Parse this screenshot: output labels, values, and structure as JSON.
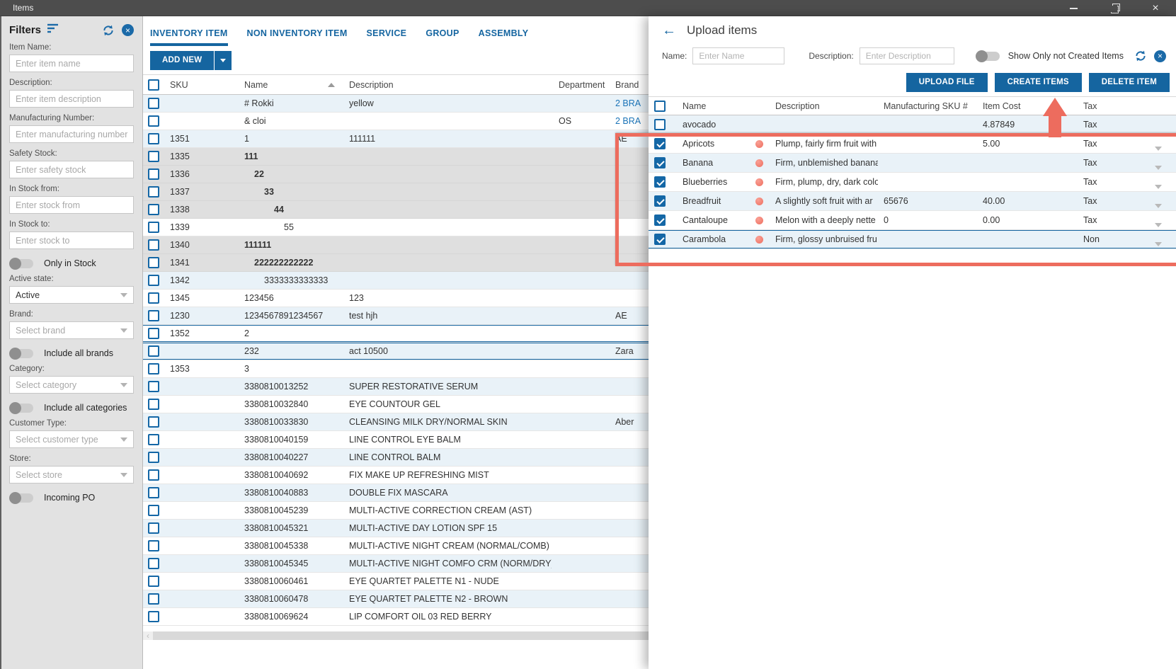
{
  "window": {
    "title": "Items"
  },
  "icons": {
    "minimize": "thin dash",
    "restore": "two overlapping squares",
    "close": "×",
    "filter": "funnel lines",
    "refresh": "circular arrows",
    "clear": "blue circle with ×",
    "back": "←",
    "sort_ascending": "▲",
    "dropdown": "▼",
    "not_created_marker": "red dot"
  },
  "sidebar": {
    "title": "Filters",
    "controls": [
      {
        "type": "text",
        "label": "Item Name:",
        "placeholder": "Enter item name"
      },
      {
        "type": "text",
        "label": "Description:",
        "placeholder": "Enter item description"
      },
      {
        "type": "text",
        "label": "Manufacturing Number:",
        "placeholder": "Enter manufacturing number"
      },
      {
        "type": "text",
        "label": "Safety Stock:",
        "placeholder": "Enter safety stock"
      },
      {
        "type": "text",
        "label": "In Stock from:",
        "placeholder": "Enter stock from"
      },
      {
        "type": "text",
        "label": "In Stock to:",
        "placeholder": "Enter stock to"
      },
      {
        "type": "toggle",
        "label": "Only in Stock",
        "on": false
      },
      {
        "type": "select",
        "label": "Active state:",
        "value": "Active",
        "is_placeholder": false
      },
      {
        "type": "select",
        "label": "Brand:",
        "value": "Select brand",
        "is_placeholder": true
      },
      {
        "type": "toggle",
        "label": "Include all brands",
        "on": false
      },
      {
        "type": "select",
        "label": "Category:",
        "value": "Select category",
        "is_placeholder": true
      },
      {
        "type": "toggle",
        "label": "Include all categories",
        "on": false
      },
      {
        "type": "select",
        "label": "Customer Type:",
        "value": "Select customer type",
        "is_placeholder": true
      },
      {
        "type": "select",
        "label": "Store:",
        "value": "Select store",
        "is_placeholder": true
      },
      {
        "type": "toggle",
        "label": "Incoming PO",
        "on": false
      }
    ]
  },
  "tabs": {
    "items": [
      "INVENTORY ITEM",
      "NON INVENTORY ITEM",
      "SERVICE",
      "GROUP",
      "ASSEMBLY"
    ],
    "active_index": 0
  },
  "toolbar": {
    "add_new_label": "ADD NEW"
  },
  "main_table": {
    "columns": [
      "SKU",
      "Name",
      "Description",
      "Department",
      "Brand"
    ],
    "rows": [
      {
        "sku": "",
        "name": "# Rokki",
        "desc": "yellow",
        "dept": "",
        "brand": "2 BRA",
        "brand_link": true,
        "bg": "alt"
      },
      {
        "sku": "",
        "name": "& cloi",
        "desc": "",
        "dept": "OS",
        "brand": "2 BRA",
        "brand_link": true,
        "bg": "white"
      },
      {
        "sku": "1351",
        "name": "1",
        "desc": "111111",
        "dept": "",
        "brand": "AE",
        "bg": "alt"
      },
      {
        "sku": "1335",
        "name": "111",
        "bold": true,
        "indent": 0,
        "bg": "grey"
      },
      {
        "sku": "1336",
        "name": "22",
        "bold": true,
        "indent": 1,
        "bg": "grey"
      },
      {
        "sku": "1337",
        "name": "33",
        "bold": true,
        "indent": 2,
        "bg": "grey"
      },
      {
        "sku": "1338",
        "name": "44",
        "bold": true,
        "indent": 3,
        "bg": "grey"
      },
      {
        "sku": "1339",
        "name": "55",
        "indent": 4,
        "bg": "white"
      },
      {
        "sku": "1340",
        "name": "111111",
        "bold": true,
        "indent": 0,
        "bg": "grey"
      },
      {
        "sku": "1341",
        "name": "222222222222",
        "bold": true,
        "indent": 1,
        "bg": "grey"
      },
      {
        "sku": "1342",
        "name": "3333333333333",
        "indent": 2,
        "bg": "alt"
      },
      {
        "sku": "1345",
        "name": "123456",
        "desc": "123",
        "bg": "white"
      },
      {
        "sku": "1230",
        "name": "1234567891234567",
        "desc": "test hjh",
        "brand": "AE",
        "bg": "alt"
      },
      {
        "sku": "1352",
        "name": "2",
        "bg": "white",
        "selected": true
      },
      {
        "sku": "",
        "name": "232",
        "desc": "act 10500",
        "brand": "Zara",
        "bg": "alt",
        "selected": true
      },
      {
        "sku": "1353",
        "name": "3",
        "bg": "white"
      },
      {
        "sku": "",
        "name": "3380810013252",
        "desc": "SUPER RESTORATIVE SERUM",
        "bg": "alt"
      },
      {
        "sku": "",
        "name": "3380810032840",
        "desc": "EYE COUNTOUR GEL",
        "bg": "white"
      },
      {
        "sku": "",
        "name": "3380810033830",
        "desc": "CLEANSING MILK DRY/NORMAL SKIN",
        "brand": "Aber",
        "bg": "alt"
      },
      {
        "sku": "",
        "name": "3380810040159",
        "desc": "LINE CONTROL EYE BALM",
        "bg": "white"
      },
      {
        "sku": "",
        "name": "3380810040227",
        "desc": "LINE CONTROL BALM",
        "bg": "alt"
      },
      {
        "sku": "",
        "name": "3380810040692",
        "desc": "FIX MAKE UP REFRESHING MIST",
        "bg": "white"
      },
      {
        "sku": "",
        "name": "3380810040883",
        "desc": "DOUBLE FIX MASCARA",
        "bg": "alt"
      },
      {
        "sku": "",
        "name": "3380810045239",
        "desc": "MULTI-ACTIVE CORRECTION CREAM (AST)",
        "bg": "white"
      },
      {
        "sku": "",
        "name": "3380810045321",
        "desc": "MULTI-ACTIVE DAY LOTION SPF 15",
        "bg": "alt"
      },
      {
        "sku": "",
        "name": "3380810045338",
        "desc": "MULTI-ACTIVE NIGHT CREAM (NORMAL/COMB)",
        "bg": "white"
      },
      {
        "sku": "",
        "name": "3380810045345",
        "desc": "MULTI-ACTIVE NIGHT COMFO CRM (NORM/DRY)",
        "bg": "alt"
      },
      {
        "sku": "",
        "name": "3380810060461",
        "desc": "EYE QUARTET PALETTE N1 - NUDE",
        "bg": "white"
      },
      {
        "sku": "",
        "name": "3380810060478",
        "desc": "EYE QUARTET PALETTE N2 - BROWN",
        "bg": "alt"
      },
      {
        "sku": "",
        "name": "3380810069624",
        "desc": "LIP COMFORT OIL 03 RED BERRY",
        "bg": "white"
      }
    ]
  },
  "overlay": {
    "title": "Upload items",
    "filters": {
      "name_label": "Name:",
      "name_placeholder": "Enter Name",
      "desc_label": "Description:",
      "desc_placeholder": "Enter Description",
      "toggle_label": "Show Only not Created Items",
      "toggle_on": false
    },
    "buttons": [
      "UPLOAD FILE",
      "CREATE ITEMS",
      "DELETE ITEM"
    ],
    "table": {
      "columns": [
        "Name",
        "Description",
        "Manufacturing SKU #",
        "Item Cost",
        "Tax"
      ],
      "rows": [
        {
          "checked": false,
          "dot": false,
          "name": "avocado",
          "desc": "",
          "sku": "",
          "cost": "4.87849",
          "tax": "Tax",
          "tax_dropdown": false,
          "bg": "alt"
        },
        {
          "checked": true,
          "dot": true,
          "name": "Apricots",
          "desc": "Plump, fairly firm fruit with",
          "sku": "",
          "cost": "5.00",
          "tax": "Tax",
          "tax_dropdown": true,
          "bg": "white"
        },
        {
          "checked": true,
          "dot": true,
          "name": "Banana",
          "desc": "Firm, unblemished bananas",
          "sku": "",
          "cost": "",
          "tax": "Tax",
          "tax_dropdown": true,
          "bg": "alt"
        },
        {
          "checked": true,
          "dot": true,
          "name": "Blueberries",
          "desc": "Firm, plump, dry, dark colo",
          "sku": "",
          "cost": "",
          "tax": "Tax",
          "tax_dropdown": true,
          "bg": "white"
        },
        {
          "checked": true,
          "dot": true,
          "name": "Breadfruit",
          "desc": "A slightly soft fruit with ar",
          "sku": "65676",
          "cost": "40.00",
          "tax": "Tax",
          "tax_dropdown": true,
          "bg": "alt"
        },
        {
          "checked": true,
          "dot": true,
          "name": "Cantaloupe",
          "desc": "Melon with a deeply nette",
          "sku": "0",
          "cost": "0.00",
          "tax": "Tax",
          "tax_dropdown": true,
          "bg": "white"
        },
        {
          "checked": true,
          "dot": true,
          "name": "Carambola",
          "desc": "Firm, glossy unbruised fru",
          "sku": "",
          "cost": "",
          "tax": "Non",
          "tax_dropdown": true,
          "bg": "alt",
          "selected": true
        }
      ]
    }
  },
  "colors": {
    "accent_blue": "#1565a0",
    "link_blue": "#1b74b8",
    "annotation_red": "#ed6c5e",
    "row_alt": "#e9f2f8",
    "row_grey": "#dfdfdf",
    "titlebar": "#4d4d4d"
  }
}
